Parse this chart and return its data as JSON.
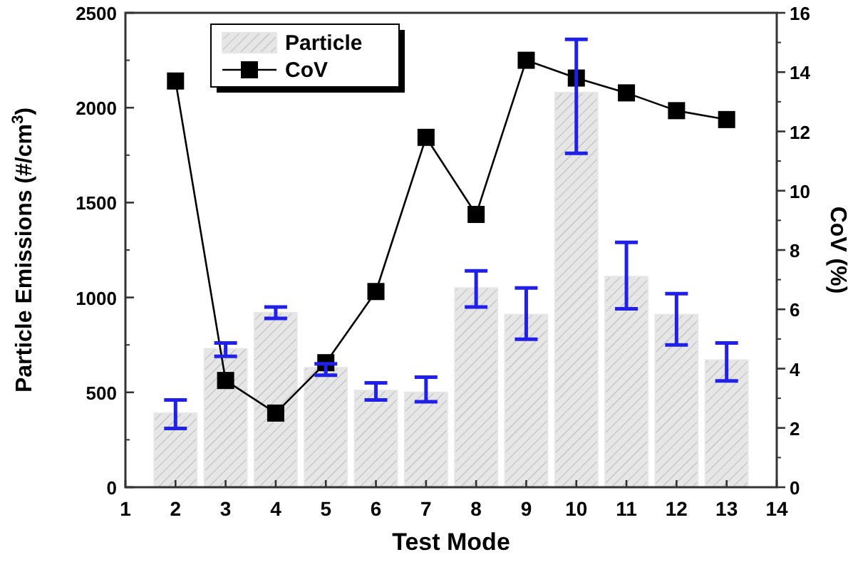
{
  "chart_data": {
    "type": "bar",
    "xlabel": "Test Mode",
    "ylabel": "Particle Emissions (#/cm$^{3}$)",
    "y2label": "CoV (%)",
    "x": [
      2,
      3,
      4,
      5,
      6,
      7,
      8,
      9,
      10,
      11,
      12,
      13
    ],
    "xlim": [
      1,
      14
    ],
    "xticks": [
      1,
      2,
      3,
      4,
      5,
      6,
      7,
      8,
      9,
      10,
      11,
      12,
      13,
      14
    ],
    "ylim": [
      0,
      2500
    ],
    "yticks": [
      0,
      500,
      1000,
      1500,
      2000,
      2500
    ],
    "y2lim": [
      0,
      16
    ],
    "y2ticks": [
      0,
      2,
      4,
      6,
      8,
      10,
      12,
      14,
      16
    ],
    "legend": "top left",
    "grid": false,
    "series": [
      {
        "name": "Particle",
        "color": "#e6e6e6",
        "values": [
          390,
          730,
          920,
          630,
          510,
          500,
          1050,
          910,
          2080,
          1110,
          910,
          670
        ],
        "errors": [
          [
            310,
            460
          ],
          [
            690,
            760
          ],
          [
            890,
            950
          ],
          [
            590,
            650
          ],
          [
            460,
            550
          ],
          [
            450,
            580
          ],
          [
            950,
            1140
          ],
          [
            780,
            1050
          ],
          [
            1760,
            2360
          ],
          [
            940,
            1290
          ],
          [
            750,
            1020
          ],
          [
            560,
            760
          ]
        ]
      },
      {
        "name": "CoV",
        "type": "line",
        "axis": "y2",
        "color": "#000000",
        "marker": "square",
        "line_style": "solid",
        "values": [
          13.7,
          3.6,
          2.5,
          4.2,
          6.6,
          11.8,
          9.2,
          14.4,
          13.8,
          13.3,
          12.7,
          12.4
        ]
      }
    ]
  }
}
